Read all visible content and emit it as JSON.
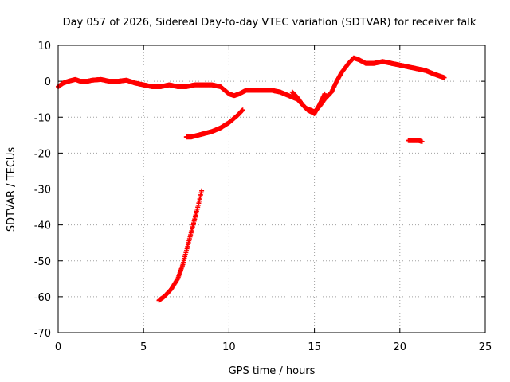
{
  "chart_data": {
    "type": "scatter",
    "title": "Day 057 of 2026, Sidereal Day-to-day VTEC variation (SDTVAR) for receiver falk",
    "xlabel": "GPS time / hours",
    "ylabel": "SDTVAR / TECUs",
    "xlim": [
      0,
      25
    ],
    "ylim": [
      -70,
      10
    ],
    "xticks": [
      0,
      5,
      10,
      15,
      20,
      25
    ],
    "yticks": [
      -70,
      -60,
      -50,
      -40,
      -30,
      -20,
      -10,
      0,
      10
    ],
    "grid": true,
    "marker": "plus",
    "color": "#ff0000",
    "series": [
      {
        "name": "main trace",
        "x": [
          0.0,
          0.3,
          0.6,
          1.0,
          1.3,
          1.7,
          2.0,
          2.5,
          3.0,
          3.5,
          4.0,
          4.5,
          5.0,
          5.5,
          6.0,
          6.5,
          7.0,
          7.5,
          8.0,
          8.5,
          9.0,
          9.5,
          10.0,
          10.3,
          10.6,
          11.0,
          11.5,
          12.0,
          12.5,
          13.0,
          13.5,
          14.0,
          14.5,
          15.0,
          15.3,
          15.6,
          16.0,
          16.3,
          16.6,
          17.0,
          17.3,
          17.6,
          18.0,
          18.5,
          19.0,
          19.5,
          20.0,
          20.5,
          21.0,
          21.5,
          22.0,
          22.3,
          22.6
        ],
        "y": [
          -1.5,
          -0.5,
          0.0,
          0.5,
          0.0,
          0.0,
          0.3,
          0.5,
          0.0,
          0.0,
          0.3,
          -0.5,
          -1.0,
          -1.5,
          -1.5,
          -1.0,
          -1.5,
          -1.5,
          -1.0,
          -1.0,
          -1.0,
          -1.5,
          -3.5,
          -4.0,
          -3.5,
          -2.5,
          -2.5,
          -2.5,
          -2.5,
          -3.0,
          -4.0,
          -5.0,
          -7.5,
          -8.5,
          -7.0,
          -5.0,
          -3.0,
          0.0,
          2.5,
          5.0,
          6.5,
          6.0,
          5.0,
          5.0,
          5.5,
          5.0,
          4.5,
          4.0,
          3.5,
          3.0,
          2.0,
          1.5,
          1.0
        ]
      },
      {
        "name": "lower branch near hour 14-15",
        "x": [
          13.7,
          14.0,
          14.3,
          14.6,
          15.0,
          15.3,
          15.6
        ],
        "y": [
          -3.0,
          -4.5,
          -6.5,
          -8.0,
          -9.0,
          -6.5,
          -3.5
        ]
      },
      {
        "name": "upper descending segment",
        "x": [
          7.5,
          7.8,
          8.2,
          8.6,
          9.0,
          9.5,
          10.0,
          10.5,
          10.8
        ],
        "y": [
          -15.5,
          -15.5,
          -15.0,
          -14.5,
          -14.0,
          -13.0,
          -11.5,
          -9.5,
          -8.0
        ]
      },
      {
        "name": "steep rising segment",
        "x": [
          5.9,
          6.2,
          6.6,
          7.0,
          7.3,
          7.6,
          7.9,
          8.2,
          8.4
        ],
        "y": [
          -61.0,
          -60.0,
          -58.0,
          -55.0,
          -51.0,
          -45.5,
          -40.0,
          -34.5,
          -30.5
        ]
      },
      {
        "name": "short segment near hour 21",
        "x": [
          20.5,
          20.8,
          21.1,
          21.3
        ],
        "y": [
          -16.5,
          -16.5,
          -16.5,
          -16.8
        ]
      }
    ]
  }
}
